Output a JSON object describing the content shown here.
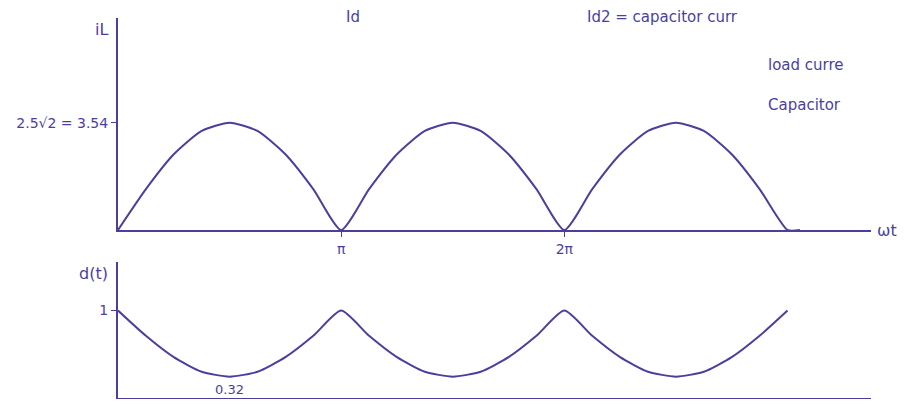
{
  "chart_data": [
    {
      "type": "line",
      "ylabel": "iL",
      "xlabel": "ωt",
      "annotations": [
        "Id",
        "Id2 = capacitor curr",
        "load curre",
        "Capacitor"
      ],
      "x": [
        0,
        0.3927,
        0.7854,
        1.1781,
        1.5708,
        1.9635,
        2.3562,
        2.7489,
        3.1416,
        3.5343,
        3.927,
        4.3197,
        4.7124,
        5.1051,
        5.4978,
        5.8905,
        6.2832,
        6.6759,
        7.0686,
        7.4613,
        7.854,
        8.2467,
        8.6394,
        9.0321,
        9.4248,
        9.6
      ],
      "values": [
        0,
        1.35,
        2.5,
        3.27,
        3.54,
        3.27,
        2.5,
        1.35,
        0,
        1.35,
        2.5,
        3.27,
        3.54,
        3.27,
        2.5,
        1.35,
        0,
        1.35,
        2.5,
        3.27,
        3.54,
        3.27,
        2.5,
        1.35,
        0,
        0
      ],
      "color": "#4b3f9e",
      "xlim": [
        0,
        10.6
      ],
      "xticks": [
        {
          "value": 3.1416,
          "label": "π"
        },
        {
          "value": 6.2832,
          "label": "2π"
        }
      ],
      "ylim": [
        0,
        7
      ],
      "yticks": [
        {
          "value": 3.54,
          "label": "2.5√2 = 3.54"
        }
      ],
      "grid": false
    },
    {
      "type": "line",
      "ylabel": "d(t)",
      "x": [
        0,
        0.3927,
        0.7854,
        1.1781,
        1.5708,
        1.9635,
        2.3562,
        2.7489,
        3.1416,
        3.5343,
        3.927,
        4.3197,
        4.7124,
        5.1051,
        5.4978,
        5.8905,
        6.2832,
        6.6759,
        7.0686,
        7.4613,
        7.854,
        8.2467,
        8.6394,
        9.0321,
        9.4248
      ],
      "values": [
        1,
        0.74,
        0.52,
        0.37,
        0.32,
        0.37,
        0.52,
        0.74,
        1,
        0.74,
        0.52,
        0.37,
        0.32,
        0.37,
        0.52,
        0.74,
        1,
        0.74,
        0.52,
        0.37,
        0.32,
        0.37,
        0.52,
        0.74,
        1
      ],
      "annotations": [
        {
          "text": "0.32",
          "x": 1.5708,
          "y": 0.32
        }
      ],
      "color": "#4b3f9e",
      "xlim": [
        0,
        10.6
      ],
      "ylim": [
        0.1,
        1.5
      ],
      "yticks": [
        1
      ],
      "tick_labels": "y",
      "grid": false
    }
  ]
}
